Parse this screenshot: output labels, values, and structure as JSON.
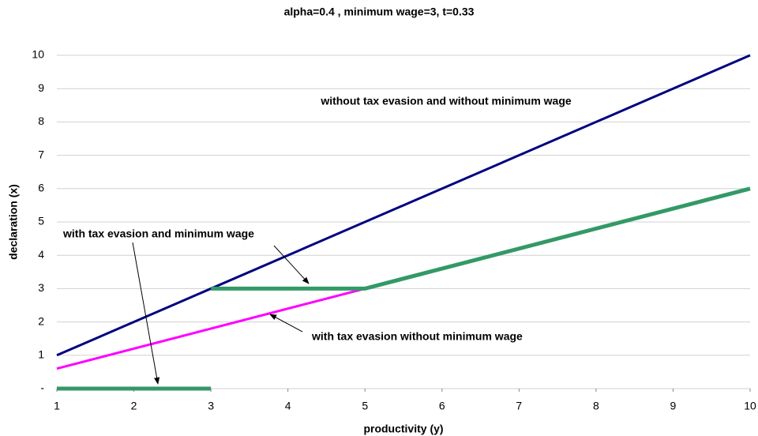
{
  "chart_data": {
    "type": "line",
    "title": "alpha=0.4 , minimum wage=3, t=0.33",
    "x_label": "productivity (y)",
    "y_label": "declaration (x)",
    "xlim": [
      1,
      10
    ],
    "ylim": [
      0,
      10
    ],
    "xticks": [
      1,
      2,
      3,
      4,
      5,
      6,
      7,
      8,
      9,
      10
    ],
    "yticks": [
      {
        "value": 0,
        "label": "-"
      },
      1,
      2,
      3,
      4,
      5,
      6,
      7,
      8,
      9,
      10
    ],
    "grid": true,
    "series": [
      {
        "name": "without tax evasion and without minimum wage",
        "color": "#000080",
        "x": [
          1,
          10
        ],
        "values": [
          1,
          10
        ]
      },
      {
        "name": "with tax evasion without minimum wage",
        "color": "#ff00ff",
        "x": [
          1,
          5
        ],
        "values": [
          0.6,
          3
        ]
      },
      {
        "name": "with tax evasion and minimum wage",
        "color": "#339966",
        "x": [
          1,
          3,
          3,
          3,
          5,
          10
        ],
        "values": [
          0,
          0,
          null,
          3,
          3,
          6
        ]
      }
    ]
  }
}
